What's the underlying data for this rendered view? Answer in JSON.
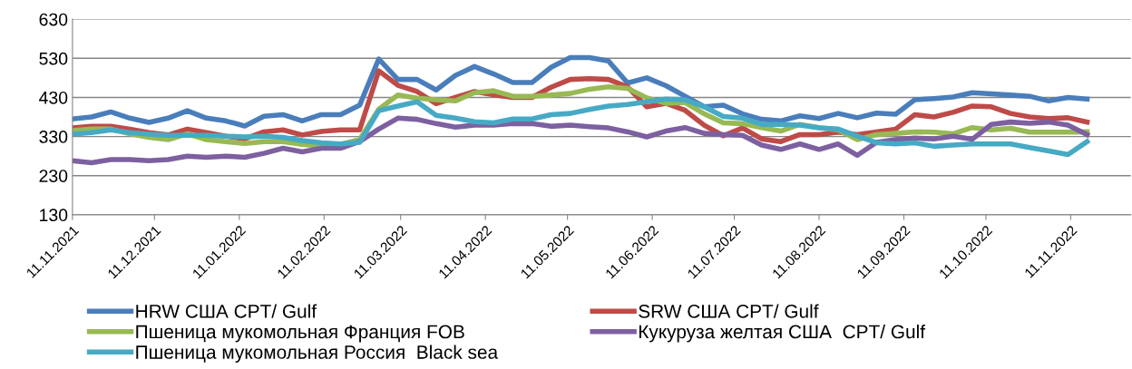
{
  "chart_data": {
    "type": "line",
    "x": [
      "2021-11-11",
      "2021-11-18",
      "2021-11-25",
      "2021-12-02",
      "2021-12-09",
      "2021-12-16",
      "2021-12-23",
      "2021-12-30",
      "2022-01-06",
      "2022-01-13",
      "2022-01-20",
      "2022-01-27",
      "2022-02-03",
      "2022-02-10",
      "2022-02-17",
      "2022-02-24",
      "2022-03-03",
      "2022-03-10",
      "2022-03-17",
      "2022-03-24",
      "2022-03-31",
      "2022-04-07",
      "2022-04-14",
      "2022-04-21",
      "2022-04-28",
      "2022-05-05",
      "2022-05-12",
      "2022-05-19",
      "2022-05-26",
      "2022-06-02",
      "2022-06-09",
      "2022-06-16",
      "2022-06-23",
      "2022-06-30",
      "2022-07-07",
      "2022-07-14",
      "2022-07-21",
      "2022-07-28",
      "2022-08-04",
      "2022-08-11",
      "2022-08-18",
      "2022-08-25",
      "2022-09-01",
      "2022-09-08",
      "2022-09-15",
      "2022-09-22",
      "2022-09-29",
      "2022-10-06",
      "2022-10-13",
      "2022-10-20",
      "2022-10-27",
      "2022-11-03",
      "2022-11-10",
      "2022-11-17"
    ],
    "series": [
      {
        "name": "HRW США CPT/ Gulf",
        "color": "#4a7ebb",
        "values": [
          375,
          380,
          393,
          377,
          366,
          377,
          396,
          377,
          370,
          357,
          382,
          386,
          370,
          386,
          386,
          410,
          528,
          476,
          476,
          449,
          486,
          509,
          490,
          468,
          468,
          507,
          532,
          532,
          523,
          467,
          480,
          460,
          433,
          406,
          410,
          388,
          374,
          370,
          383,
          376,
          389,
          378,
          390,
          387,
          424,
          427,
          431,
          442,
          439,
          436,
          433,
          421,
          430,
          426
        ]
      },
      {
        "name": "SRW США CPT/ Gulf",
        "color": "#be4b48",
        "values": [
          352,
          356,
          356,
          349,
          340,
          334,
          349,
          340,
          331,
          324,
          342,
          347,
          334,
          343,
          347,
          347,
          498,
          461,
          445,
          414,
          430,
          445,
          437,
          430,
          430,
          456,
          476,
          478,
          476,
          457,
          406,
          415,
          397,
          359,
          332,
          352,
          324,
          317,
          335,
          335,
          341,
          335,
          342,
          349,
          386,
          380,
          392,
          408,
          406,
          389,
          380,
          376,
          378,
          367
        ]
      },
      {
        "name": "Пшеница мукомольная Франция FOB",
        "color": "#98b954",
        "values": [
          345,
          349,
          349,
          337,
          328,
          322,
          337,
          322,
          317,
          312,
          317,
          317,
          310,
          306,
          310,
          322,
          400,
          436,
          428,
          424,
          421,
          442,
          447,
          433,
          433,
          436,
          440,
          451,
          457,
          453,
          429,
          415,
          417,
          388,
          365,
          363,
          353,
          344,
          361,
          353,
          347,
          322,
          335,
          338,
          342,
          341,
          337,
          353,
          347,
          351,
          341,
          341,
          341,
          342
        ]
      },
      {
        "name": "Кукуруза желтая США  CPT/ Gulf",
        "color": "#7d60a0",
        "values": [
          268,
          263,
          271,
          271,
          268,
          271,
          280,
          277,
          280,
          277,
          287,
          300,
          291,
          300,
          300,
          317,
          349,
          377,
          374,
          363,
          354,
          359,
          359,
          363,
          363,
          356,
          359,
          355,
          352,
          342,
          329,
          344,
          353,
          338,
          335,
          333,
          308,
          297,
          311,
          297,
          311,
          282,
          315,
          322,
          326,
          324,
          331,
          323,
          361,
          367,
          364,
          367,
          359,
          335
        ]
      },
      {
        "name": "Пшеница мукомольная Россия  Black sea",
        "color": "#46aac5",
        "values": [
          336,
          340,
          347,
          340,
          336,
          333,
          333,
          333,
          331,
          329,
          331,
          328,
          320,
          314,
          311,
          315,
          396,
          408,
          419,
          384,
          377,
          368,
          365,
          375,
          375,
          386,
          389,
          399,
          408,
          412,
          419,
          426,
          424,
          406,
          381,
          377,
          361,
          361,
          359,
          352,
          349,
          331,
          314,
          311,
          314,
          305,
          308,
          311,
          311,
          311,
          302,
          293,
          284,
          317
        ]
      }
    ],
    "xlim": [
      "2021-11-11",
      "2022-12-03"
    ],
    "xticks": [
      {
        "value": "2021-11-11",
        "label": "11.11.2021"
      },
      {
        "value": "2021-12-11",
        "label": "11.12.2021"
      },
      {
        "value": "2022-01-11",
        "label": "11.01.2022"
      },
      {
        "value": "2022-02-11",
        "label": "11.02.2022"
      },
      {
        "value": "2022-03-11",
        "label": "11.03.2022"
      },
      {
        "value": "2022-04-11",
        "label": "11.04.2022"
      },
      {
        "value": "2022-05-11",
        "label": "11.05.2022"
      },
      {
        "value": "2022-06-11",
        "label": "11.06.2022"
      },
      {
        "value": "2022-07-11",
        "label": "11.07.2022"
      },
      {
        "value": "2022-08-11",
        "label": "11.08.2022"
      },
      {
        "value": "2022-09-11",
        "label": "11.09.2022"
      },
      {
        "value": "2022-10-11",
        "label": "11.10.2022"
      },
      {
        "value": "2022-11-11",
        "label": "11.11.2022"
      }
    ],
    "ylim": [
      130,
      630
    ],
    "yticks": [
      130,
      230,
      330,
      430,
      530,
      630
    ],
    "grid": "y",
    "legend": "bottom",
    "marker": "none",
    "line_style": "solid"
  }
}
